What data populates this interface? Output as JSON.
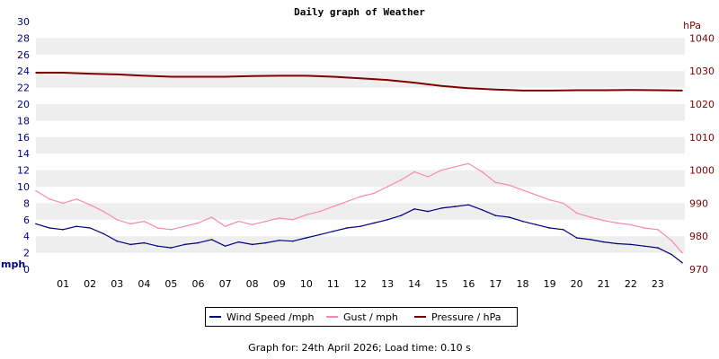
{
  "chart_data": {
    "type": "line",
    "title": "Daily graph of Weather",
    "left_axis": {
      "unit_label": "mph",
      "ylim": [
        0,
        30
      ],
      "ticks": [
        "0",
        "2",
        "4",
        "6",
        "8",
        "10",
        "12",
        "14",
        "16",
        "18",
        "20",
        "22",
        "24",
        "26",
        "28",
        "30"
      ]
    },
    "right_axis": {
      "unit_label": "hPa",
      "ylim": [
        970,
        1045
      ],
      "ticks": [
        "970",
        "980",
        "990",
        "1000",
        "1010",
        "1020",
        "1030",
        "1040"
      ]
    },
    "x_axis": {
      "unit": "hour of day",
      "xlim": [
        0,
        24
      ],
      "ticks": [
        "01",
        "02",
        "03",
        "04",
        "05",
        "06",
        "07",
        "08",
        "09",
        "10",
        "11",
        "12",
        "13",
        "14",
        "15",
        "16",
        "17",
        "18",
        "19",
        "20",
        "21",
        "22",
        "23"
      ]
    },
    "grid": "horizontal bands",
    "legend_placement": "bottom-center",
    "colors": {
      "wind": "#000080",
      "gust": "#ff88aa",
      "pressure": "#800000",
      "band": "#eeeeee"
    },
    "series": [
      {
        "name": "Wind Speed /mph",
        "axis": "left",
        "x": [
          0,
          0.5,
          1,
          1.5,
          2,
          2.5,
          3,
          3.5,
          4,
          4.5,
          5,
          5.5,
          6,
          6.5,
          7,
          7.5,
          8,
          8.5,
          9,
          9.5,
          10,
          10.5,
          11,
          11.5,
          12,
          12.5,
          13,
          13.5,
          14,
          14.5,
          15,
          15.5,
          16,
          16.5,
          17,
          17.5,
          18,
          18.5,
          19,
          19.5,
          20,
          20.5,
          21,
          21.5,
          22,
          22.5,
          23,
          23.5,
          23.9
        ],
        "values": [
          5.5,
          5.0,
          4.8,
          5.2,
          5.0,
          4.3,
          3.4,
          3.0,
          3.2,
          2.8,
          2.6,
          3.0,
          3.2,
          3.6,
          2.8,
          3.3,
          3.0,
          3.2,
          3.5,
          3.4,
          3.8,
          4.2,
          4.6,
          5.0,
          5.2,
          5.6,
          6.0,
          6.5,
          7.3,
          7.0,
          7.4,
          7.6,
          7.8,
          7.2,
          6.5,
          6.3,
          5.8,
          5.4,
          5.0,
          4.8,
          3.8,
          3.6,
          3.3,
          3.1,
          3.0,
          2.8,
          2.6,
          1.8,
          0.8
        ]
      },
      {
        "name": "Gust / mph",
        "axis": "left",
        "x": [
          0,
          0.5,
          1,
          1.5,
          2,
          2.5,
          3,
          3.5,
          4,
          4.5,
          5,
          5.5,
          6,
          6.5,
          7,
          7.5,
          8,
          8.5,
          9,
          9.5,
          10,
          10.5,
          11,
          11.5,
          12,
          12.5,
          13,
          13.5,
          14,
          14.5,
          15,
          15.5,
          16,
          16.5,
          17,
          17.5,
          18,
          18.5,
          19,
          19.5,
          20,
          20.5,
          21,
          21.5,
          22,
          22.5,
          23,
          23.5,
          23.9
        ],
        "values": [
          9.5,
          8.5,
          8.0,
          8.5,
          7.8,
          7.0,
          6.0,
          5.5,
          5.8,
          5.0,
          4.8,
          5.2,
          5.6,
          6.3,
          5.2,
          5.8,
          5.4,
          5.8,
          6.2,
          6.0,
          6.6,
          7.0,
          7.6,
          8.2,
          8.8,
          9.2,
          10.0,
          10.8,
          11.8,
          11.2,
          12.0,
          12.4,
          12.8,
          11.8,
          10.5,
          10.2,
          9.6,
          9.0,
          8.4,
          8.0,
          6.8,
          6.3,
          5.9,
          5.6,
          5.4,
          5.0,
          4.8,
          3.5,
          2.0
        ]
      },
      {
        "name": "Pressure / hPa",
        "axis": "right",
        "x": [
          0,
          1,
          2,
          3,
          4,
          5,
          6,
          7,
          8,
          9,
          10,
          11,
          12,
          13,
          14,
          15,
          16,
          17,
          18,
          19,
          20,
          21,
          22,
          23,
          23.9
        ],
        "values": [
          1029.5,
          1029.5,
          1029.2,
          1029.0,
          1028.6,
          1028.3,
          1028.3,
          1028.3,
          1028.5,
          1028.6,
          1028.6,
          1028.3,
          1027.8,
          1027.3,
          1026.5,
          1025.5,
          1024.8,
          1024.4,
          1024.1,
          1024.1,
          1024.2,
          1024.2,
          1024.3,
          1024.2,
          1024.1
        ]
      }
    ]
  },
  "footer": {
    "text": "Graph for: 24th April 2026; Load time: 0.10 s"
  }
}
